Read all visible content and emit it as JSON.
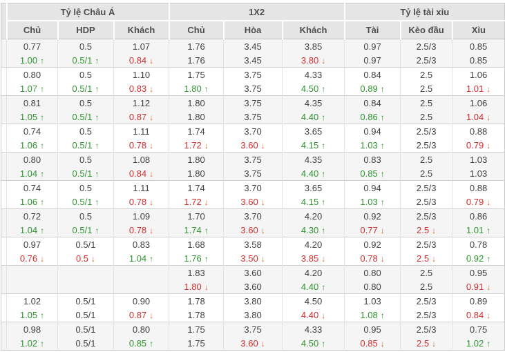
{
  "table": {
    "groups": [
      {
        "label": "Tỷ lệ Châu Á",
        "columns": [
          "Chủ",
          "HDP",
          "Khách"
        ]
      },
      {
        "label": "1X2",
        "columns": [
          "Chủ",
          "Hòa",
          "Khách"
        ]
      },
      {
        "label": "Tỷ lệ tài xỉu",
        "columns": [
          "Tài",
          "Kèo đầu",
          "Xỉu"
        ]
      }
    ],
    "colors": {
      "header_bg": "#e5e5e5",
      "stripe_bg": "#f5f5f5",
      "up_text": "#2e942e",
      "down_text": "#d22d2d",
      "up_arrow": "#2e942e",
      "down_arrow": "#e0622d",
      "border": "#c9c9c9"
    },
    "icons": {
      "up_arrow_glyph": "↑",
      "down_arrow_glyph": "↓"
    },
    "rows": [
      {
        "base": [
          "0.77",
          "0.5",
          "1.07",
          "1.76",
          "3.45",
          "3.85",
          "0.97",
          "2.5/3",
          "0.85"
        ],
        "live": [
          {
            "v": "1.00",
            "d": "up"
          },
          {
            "v": "0.5/1",
            "d": "up"
          },
          {
            "v": "0.84",
            "d": "down"
          },
          {
            "v": "1.76"
          },
          {
            "v": "3.45"
          },
          {
            "v": "3.80",
            "d": "down"
          },
          {
            "v": "0.97"
          },
          {
            "v": "2.5/3"
          },
          {
            "v": "0.85"
          }
        ]
      },
      {
        "base": [
          "0.80",
          "0.5",
          "1.10",
          "1.75",
          "3.75",
          "4.33",
          "0.84",
          "2.5",
          "1.06"
        ],
        "live": [
          {
            "v": "1.07",
            "d": "up"
          },
          {
            "v": "0.5/1",
            "d": "up"
          },
          {
            "v": "0.83",
            "d": "down"
          },
          {
            "v": "1.80",
            "d": "up"
          },
          {
            "v": "3.75"
          },
          {
            "v": "4.50",
            "d": "up"
          },
          {
            "v": "0.89",
            "d": "up"
          },
          {
            "v": "2.5"
          },
          {
            "v": "1.01",
            "d": "down"
          }
        ]
      },
      {
        "base": [
          "0.81",
          "0.5",
          "1.12",
          "1.80",
          "3.75",
          "4.35",
          "0.84",
          "2.5",
          "1.06"
        ],
        "live": [
          {
            "v": "1.05",
            "d": "up"
          },
          {
            "v": "0.5/1",
            "d": "up"
          },
          {
            "v": "0.87",
            "d": "down"
          },
          {
            "v": "1.80"
          },
          {
            "v": "3.75"
          },
          {
            "v": "4.40",
            "d": "up"
          },
          {
            "v": "0.86",
            "d": "up"
          },
          {
            "v": "2.5"
          },
          {
            "v": "1.04",
            "d": "down"
          }
        ]
      },
      {
        "base": [
          "0.74",
          "0.5",
          "1.11",
          "1.74",
          "3.70",
          "3.65",
          "0.94",
          "2.5/3",
          "0.88"
        ],
        "live": [
          {
            "v": "1.06",
            "d": "up"
          },
          {
            "v": "0.5/1",
            "d": "up"
          },
          {
            "v": "0.78",
            "d": "down"
          },
          {
            "v": "1.72",
            "d": "down"
          },
          {
            "v": "3.60",
            "d": "down"
          },
          {
            "v": "4.15",
            "d": "up"
          },
          {
            "v": "1.03",
            "d": "up"
          },
          {
            "v": "2.5/3"
          },
          {
            "v": "0.79",
            "d": "down"
          }
        ]
      },
      {
        "base": [
          "0.80",
          "0.5",
          "1.08",
          "1.80",
          "3.75",
          "4.35",
          "0.83",
          "2.5",
          "1.03"
        ],
        "live": [
          {
            "v": "1.04",
            "d": "up"
          },
          {
            "v": "0.5/1",
            "d": "up"
          },
          {
            "v": "0.84",
            "d": "down"
          },
          {
            "v": "1.80"
          },
          {
            "v": "3.75"
          },
          {
            "v": "4.40",
            "d": "up"
          },
          {
            "v": "0.85",
            "d": "up"
          },
          {
            "v": "2.5"
          },
          {
            "v": "1.03"
          }
        ]
      },
      {
        "base": [
          "0.74",
          "0.5",
          "1.11",
          "1.74",
          "3.70",
          "3.65",
          "0.94",
          "2.5/3",
          "0.88"
        ],
        "live": [
          {
            "v": "1.06",
            "d": "up"
          },
          {
            "v": "0.5/1",
            "d": "up"
          },
          {
            "v": "0.78",
            "d": "down"
          },
          {
            "v": "1.72",
            "d": "down"
          },
          {
            "v": "3.60",
            "d": "down"
          },
          {
            "v": "4.15",
            "d": "up"
          },
          {
            "v": "1.03",
            "d": "up"
          },
          {
            "v": "2.5/3"
          },
          {
            "v": "0.79",
            "d": "down"
          }
        ]
      },
      {
        "base": [
          "0.72",
          "0.5",
          "1.09",
          "1.70",
          "3.70",
          "4.20",
          "0.92",
          "2.5/3",
          "0.86"
        ],
        "live": [
          {
            "v": "1.04",
            "d": "up"
          },
          {
            "v": "0.5/1",
            "d": "up"
          },
          {
            "v": "0.78",
            "d": "down"
          },
          {
            "v": "1.74",
            "d": "up"
          },
          {
            "v": "3.60",
            "d": "down"
          },
          {
            "v": "4.30",
            "d": "up"
          },
          {
            "v": "0.77",
            "d": "down"
          },
          {
            "v": "2.5",
            "d": "down"
          },
          {
            "v": "1.01",
            "d": "up"
          }
        ]
      },
      {
        "base": [
          "0.97",
          "0.5/1",
          "0.83",
          "1.68",
          "3.58",
          "4.20",
          "0.92",
          "2.5/3",
          "0.78"
        ],
        "live": [
          {
            "v": "0.76",
            "d": "down"
          },
          {
            "v": "0.5",
            "d": "down"
          },
          {
            "v": "1.04",
            "d": "up"
          },
          {
            "v": "1.76",
            "d": "up"
          },
          {
            "v": "3.50",
            "d": "down"
          },
          {
            "v": "3.85",
            "d": "down"
          },
          {
            "v": "0.78",
            "d": "down"
          },
          {
            "v": "2.5",
            "d": "down"
          },
          {
            "v": "0.92",
            "d": "up"
          }
        ]
      },
      {
        "base": [
          "",
          "",
          "",
          "1.83",
          "3.60",
          "4.20",
          "0.80",
          "2.5",
          "0.95"
        ],
        "live": [
          {
            "v": ""
          },
          {
            "v": ""
          },
          {
            "v": ""
          },
          {
            "v": "1.80",
            "d": "down"
          },
          {
            "v": "3.60"
          },
          {
            "v": "4.40",
            "d": "up"
          },
          {
            "v": "0.80"
          },
          {
            "v": "2.5"
          },
          {
            "v": "0.91",
            "d": "down"
          }
        ]
      },
      {
        "base": [
          "1.02",
          "0.5/1",
          "0.90",
          "1.78",
          "3.80",
          "4.50",
          "1.03",
          "2.5/3",
          "0.89"
        ],
        "live": [
          {
            "v": "1.05",
            "d": "up"
          },
          {
            "v": "0.5/1"
          },
          {
            "v": "0.87",
            "d": "down"
          },
          {
            "v": "1.78"
          },
          {
            "v": "3.80"
          },
          {
            "v": "4.40",
            "d": "down"
          },
          {
            "v": "1.08",
            "d": "up"
          },
          {
            "v": "2.5/3"
          },
          {
            "v": "0.84",
            "d": "down"
          }
        ]
      },
      {
        "base": [
          "0.98",
          "0.5/1",
          "0.80",
          "1.75",
          "3.75",
          "4.33",
          "0.95",
          "2.5/3",
          "0.75"
        ],
        "live": [
          {
            "v": "1.02",
            "d": "up"
          },
          {
            "v": "0.5/1"
          },
          {
            "v": "0.85",
            "d": "up"
          },
          {
            "v": "1.75"
          },
          {
            "v": "3.60",
            "d": "down"
          },
          {
            "v": "4.50",
            "d": "up"
          },
          {
            "v": "0.85",
            "d": "down"
          },
          {
            "v": "2.5",
            "d": "down"
          },
          {
            "v": "1.02",
            "d": "up"
          }
        ]
      }
    ]
  }
}
